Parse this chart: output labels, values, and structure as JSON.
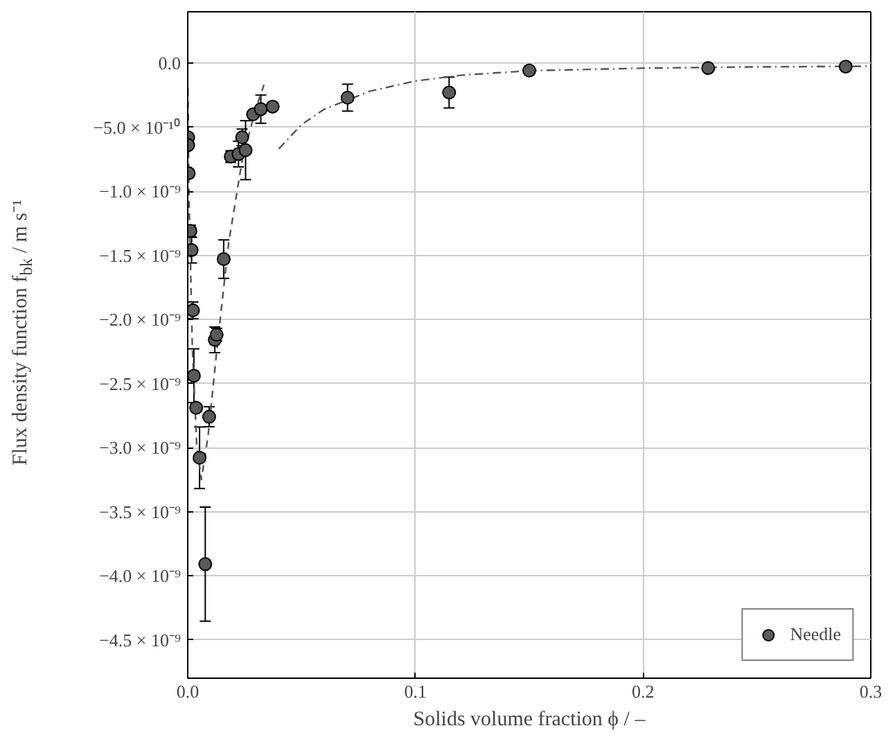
{
  "chart_data": {
    "type": "scatter",
    "xlabel": "Solids volume fraction ϕ / –",
    "ylabel": "Flux density function f$_{bk}$ / m s⁻¹",
    "xlim": [
      0,
      0.3
    ],
    "ylim": [
      -4.8e-09,
      4e-10
    ],
    "xticks": [
      {
        "value": 0,
        "label": "0.0"
      },
      0.1,
      0.2,
      0.3
    ],
    "yticks": [
      {
        "value": 0,
        "label": "0.0"
      },
      {
        "value": -5e-10,
        "label": "−5.0 × 10⁻¹⁰"
      },
      {
        "value": -1e-09,
        "label": "−1.0 × 10⁻⁹"
      },
      {
        "value": -1.5e-09,
        "label": "−1.5 × 10⁻⁹"
      },
      {
        "value": -2e-09,
        "label": "−2.0 × 10⁻⁹"
      },
      {
        "value": -2.5e-09,
        "label": "−2.5 × 10⁻⁹"
      },
      {
        "value": -3e-09,
        "label": "−3.0 × 10⁻⁹"
      },
      {
        "value": -3.5e-09,
        "label": "−3.5 × 10⁻⁹"
      },
      {
        "value": -4e-09,
        "label": "−4.0 × 10⁻⁹"
      },
      {
        "value": -4.5e-09,
        "label": "−4.5 × 10⁻⁹"
      }
    ],
    "grid": true,
    "legend": "bottom right",
    "series": [
      {
        "type": "line",
        "color": "#555555",
        "line_style": "dashed",
        "marker": "none",
        "x": [
          0.0001,
          0.0005,
          0.002,
          0.004,
          0.006,
          0.009,
          0.013,
          0.018,
          0.024,
          0.03,
          0.0335
        ],
        "values": [
          -2e-10,
          -1e-09,
          -2.2e-09,
          -3e-09,
          -3.25e-09,
          -2.9e-09,
          -2.2e-09,
          -1.4e-09,
          -7.5e-10,
          -3.5e-10,
          -1.7e-10
        ]
      },
      {
        "type": "line",
        "color": "#555555",
        "line_style": "dashdot",
        "marker": "none",
        "x": [
          0.04,
          0.05,
          0.06,
          0.08,
          0.1,
          0.12,
          0.15,
          0.2,
          0.25,
          0.3
        ],
        "values": [
          -6.7e-10,
          -4.8e-10,
          -3.6e-10,
          -2.2e-10,
          -1.4e-10,
          -9.5e-11,
          -6e-11,
          -4e-11,
          -3e-11,
          -2.5e-11
        ]
      },
      {
        "name": "Needle",
        "color": "#5a5a5a",
        "marker": "circle",
        "x": [
          0.0002,
          0.0002,
          0.0004,
          0.0012,
          0.0017,
          0.0023,
          0.0027,
          0.0037,
          0.0052,
          0.0077,
          0.0094,
          0.0119,
          0.0127,
          0.0158,
          0.0189,
          0.0223,
          0.0239,
          0.0254,
          0.0287,
          0.0321,
          0.0373,
          0.0702,
          0.1148,
          0.15,
          0.2286,
          0.289
        ],
        "values": [
          -5.8e-10,
          -6.4e-10,
          -8.6e-10,
          -1.31e-09,
          -1.46e-09,
          -1.93e-09,
          -2.44e-09,
          -2.69e-09,
          -3.08e-09,
          -3.91e-09,
          -2.76e-09,
          -2.16e-09,
          -2.12e-09,
          -1.53e-09,
          -7.3e-10,
          -7.1e-10,
          -5.8e-10,
          -6.8e-10,
          -4e-10,
          -3.6e-10,
          -3.4e-10,
          -2.7e-10,
          -2.3e-10,
          -5.8e-11,
          -3.9e-11,
          -2.8e-11
        ],
        "errors": [
          null,
          null,
          null,
          4.5e-11,
          1e-10,
          6.5e-11,
          2.1e-10,
          null,
          2.4e-10,
          4.45e-10,
          7.8e-11,
          1e-10,
          5e-11,
          1.5e-10,
          4.5e-11,
          1e-10,
          6.5e-11,
          2.3e-10,
          null,
          1.1e-10,
          null,
          1.05e-10,
          1.2e-10,
          null,
          null,
          null
        ]
      }
    ]
  }
}
